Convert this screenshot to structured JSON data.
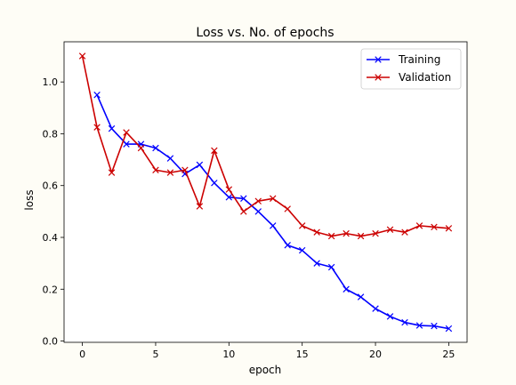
{
  "chart_data": {
    "type": "line",
    "title": "Loss vs. No. of epochs",
    "xlabel": "epoch",
    "ylabel": "loss",
    "xlim": [
      -1.25,
      26.25
    ],
    "ylim": [
      -0.005,
      1.155
    ],
    "xticks": [
      0,
      5,
      10,
      15,
      20,
      25
    ],
    "yticks": [
      0.0,
      0.2,
      0.4,
      0.6,
      0.8,
      1.0
    ],
    "grid": false,
    "legend_position": "top-right",
    "series": [
      {
        "name": "Training",
        "color": "#0000ff",
        "marker": "x",
        "x": [
          1,
          2,
          3,
          4,
          5,
          6,
          7,
          8,
          9,
          10,
          11,
          12,
          13,
          14,
          15,
          16,
          17,
          18,
          19,
          20,
          21,
          22,
          23,
          24,
          25
        ],
        "y": [
          0.95,
          0.82,
          0.76,
          0.76,
          0.745,
          0.705,
          0.645,
          0.68,
          0.61,
          0.555,
          0.55,
          0.5,
          0.445,
          0.37,
          0.35,
          0.3,
          0.285,
          0.2,
          0.17,
          0.125,
          0.095,
          0.072,
          0.06,
          0.058,
          0.048
        ]
      },
      {
        "name": "Validation",
        "color": "#cc0000",
        "marker": "x",
        "x": [
          0,
          1,
          2,
          3,
          4,
          5,
          6,
          7,
          8,
          9,
          10,
          11,
          12,
          13,
          14,
          15,
          16,
          17,
          18,
          19,
          20,
          21,
          22,
          23,
          24,
          25
        ],
        "y": [
          1.1,
          0.825,
          0.65,
          0.805,
          0.745,
          0.66,
          0.65,
          0.66,
          0.52,
          0.735,
          0.585,
          0.5,
          0.54,
          0.55,
          0.51,
          0.445,
          0.42,
          0.405,
          0.415,
          0.405,
          0.415,
          0.43,
          0.42,
          0.445,
          0.44,
          0.435
        ]
      }
    ]
  }
}
